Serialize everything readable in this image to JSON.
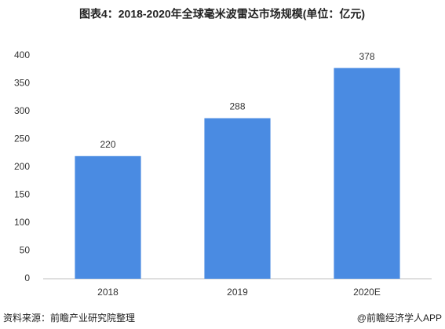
{
  "chart_data": {
    "type": "bar",
    "title": "图表4：2018-2020年全球毫米波雷达市场规模(单位：亿元)",
    "categories": [
      "2018",
      "2019",
      "2020E"
    ],
    "values": [
      220,
      288,
      378
    ],
    "color": "#4a8be2",
    "ylim": [
      0,
      400
    ],
    "yticks": [
      0,
      50,
      100,
      150,
      200,
      250,
      300,
      350,
      400
    ],
    "grid": false,
    "source": "资料来源：前瞻产业研究院整理",
    "credit": "@前瞻经济学人APP"
  }
}
